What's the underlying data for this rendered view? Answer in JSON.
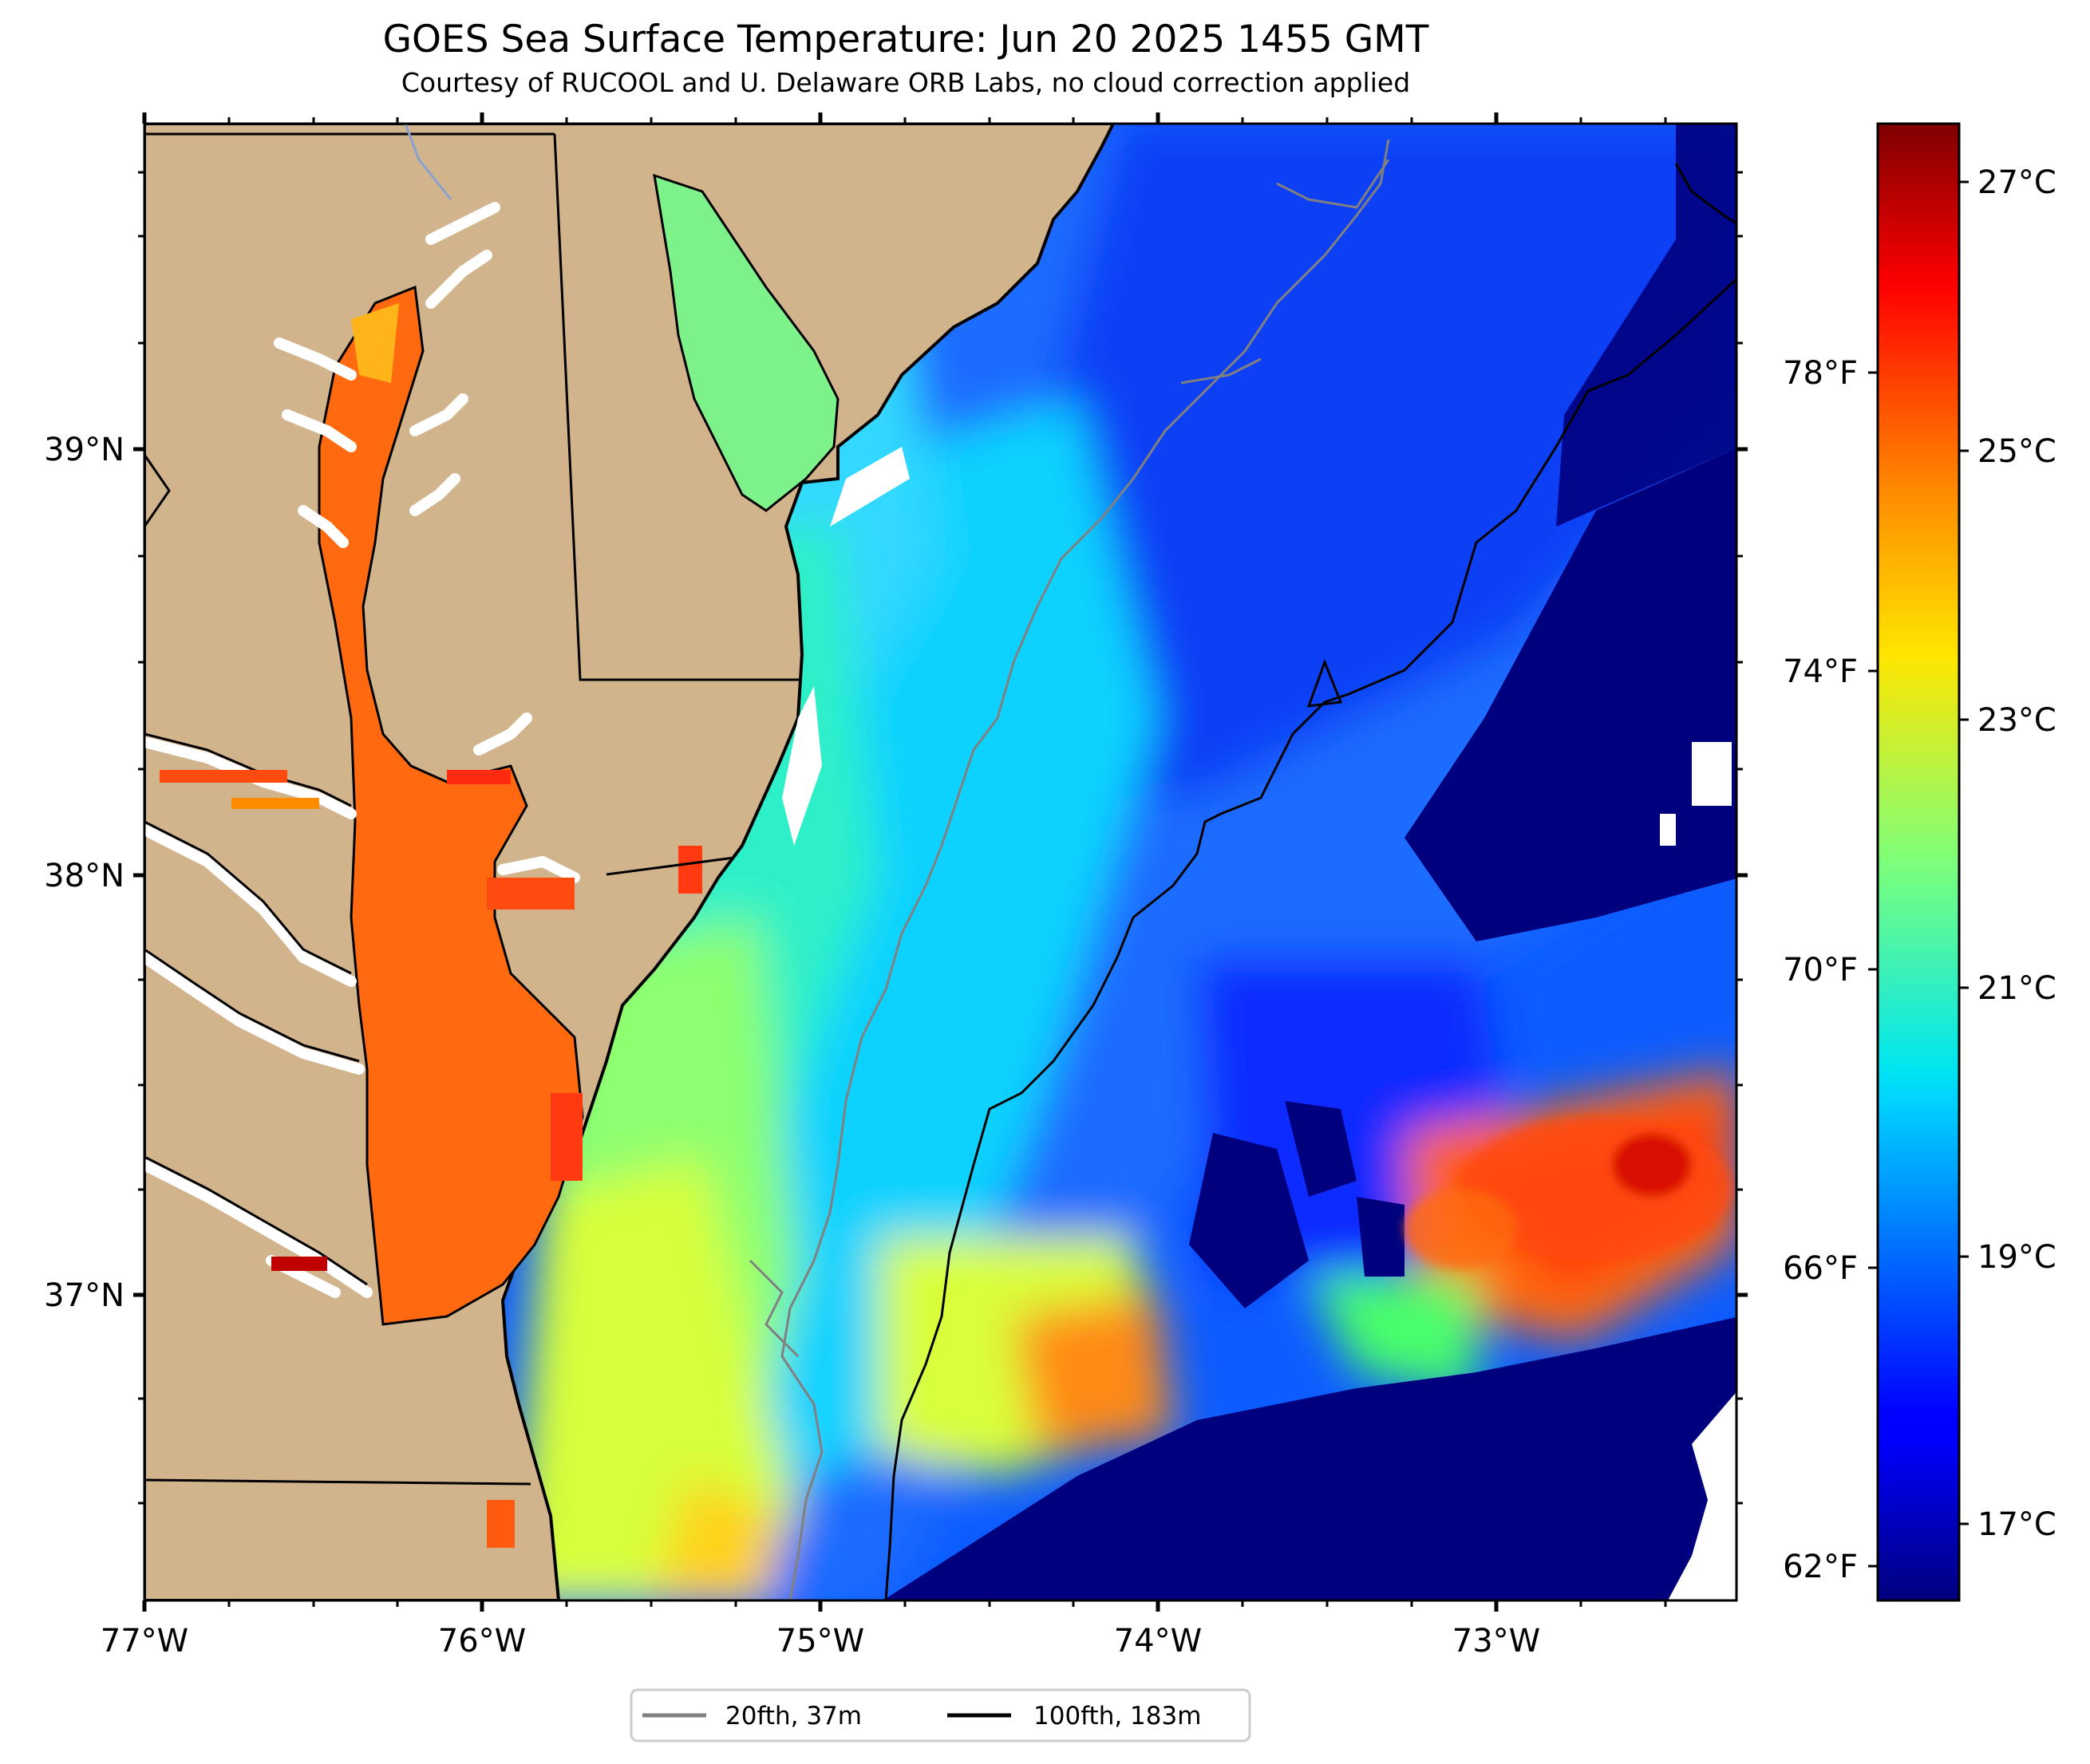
{
  "title": "GOES Sea Surface Temperature: Jun 20 2025 1455 GMT",
  "subtitle": "Courtesy of RUCOOL and U. Delaware ORB Labs, no cloud correction applied",
  "map": {
    "extent": {
      "lon_min": -77.0,
      "lon_max": -72.3,
      "lat_min": 36.3,
      "lat_max": 39.77
    },
    "lon_ticks": [
      {
        "value": -77,
        "label": "77°W"
      },
      {
        "value": -76,
        "label": "76°W"
      },
      {
        "value": -75,
        "label": "75°W"
      },
      {
        "value": -74,
        "label": "74°W"
      },
      {
        "value": -73,
        "label": "73°W"
      }
    ],
    "lat_ticks": [
      {
        "value": 39,
        "label": "39°N"
      },
      {
        "value": 38,
        "label": "38°N"
      },
      {
        "value": 37,
        "label": "37°N"
      }
    ],
    "colors": {
      "land": "#d2b48c",
      "coastline": "#000000",
      "missing": "#ffffff"
    }
  },
  "colorbar": {
    "colormap": "jet",
    "range_c": [
      16.1,
      27.4
    ],
    "celsius_ticks": [
      {
        "value": 17,
        "label": "17°C"
      },
      {
        "value": 19,
        "label": "19°C"
      },
      {
        "value": 21,
        "label": "21°C"
      },
      {
        "value": 23,
        "label": "23°C"
      },
      {
        "value": 25,
        "label": "25°C"
      },
      {
        "value": 27,
        "label": "27°C"
      }
    ],
    "fahrenheit_ticks": [
      {
        "value": 62,
        "label": "62°F"
      },
      {
        "value": 66,
        "label": "66°F"
      },
      {
        "value": 70,
        "label": "70°F"
      },
      {
        "value": 74,
        "label": "74°F"
      },
      {
        "value": 78,
        "label": "78°F"
      }
    ]
  },
  "legend": {
    "items": [
      {
        "label": "20fth, 37m",
        "color": "#808080"
      },
      {
        "label": "100fth, 183m",
        "color": "#000000"
      }
    ]
  }
}
